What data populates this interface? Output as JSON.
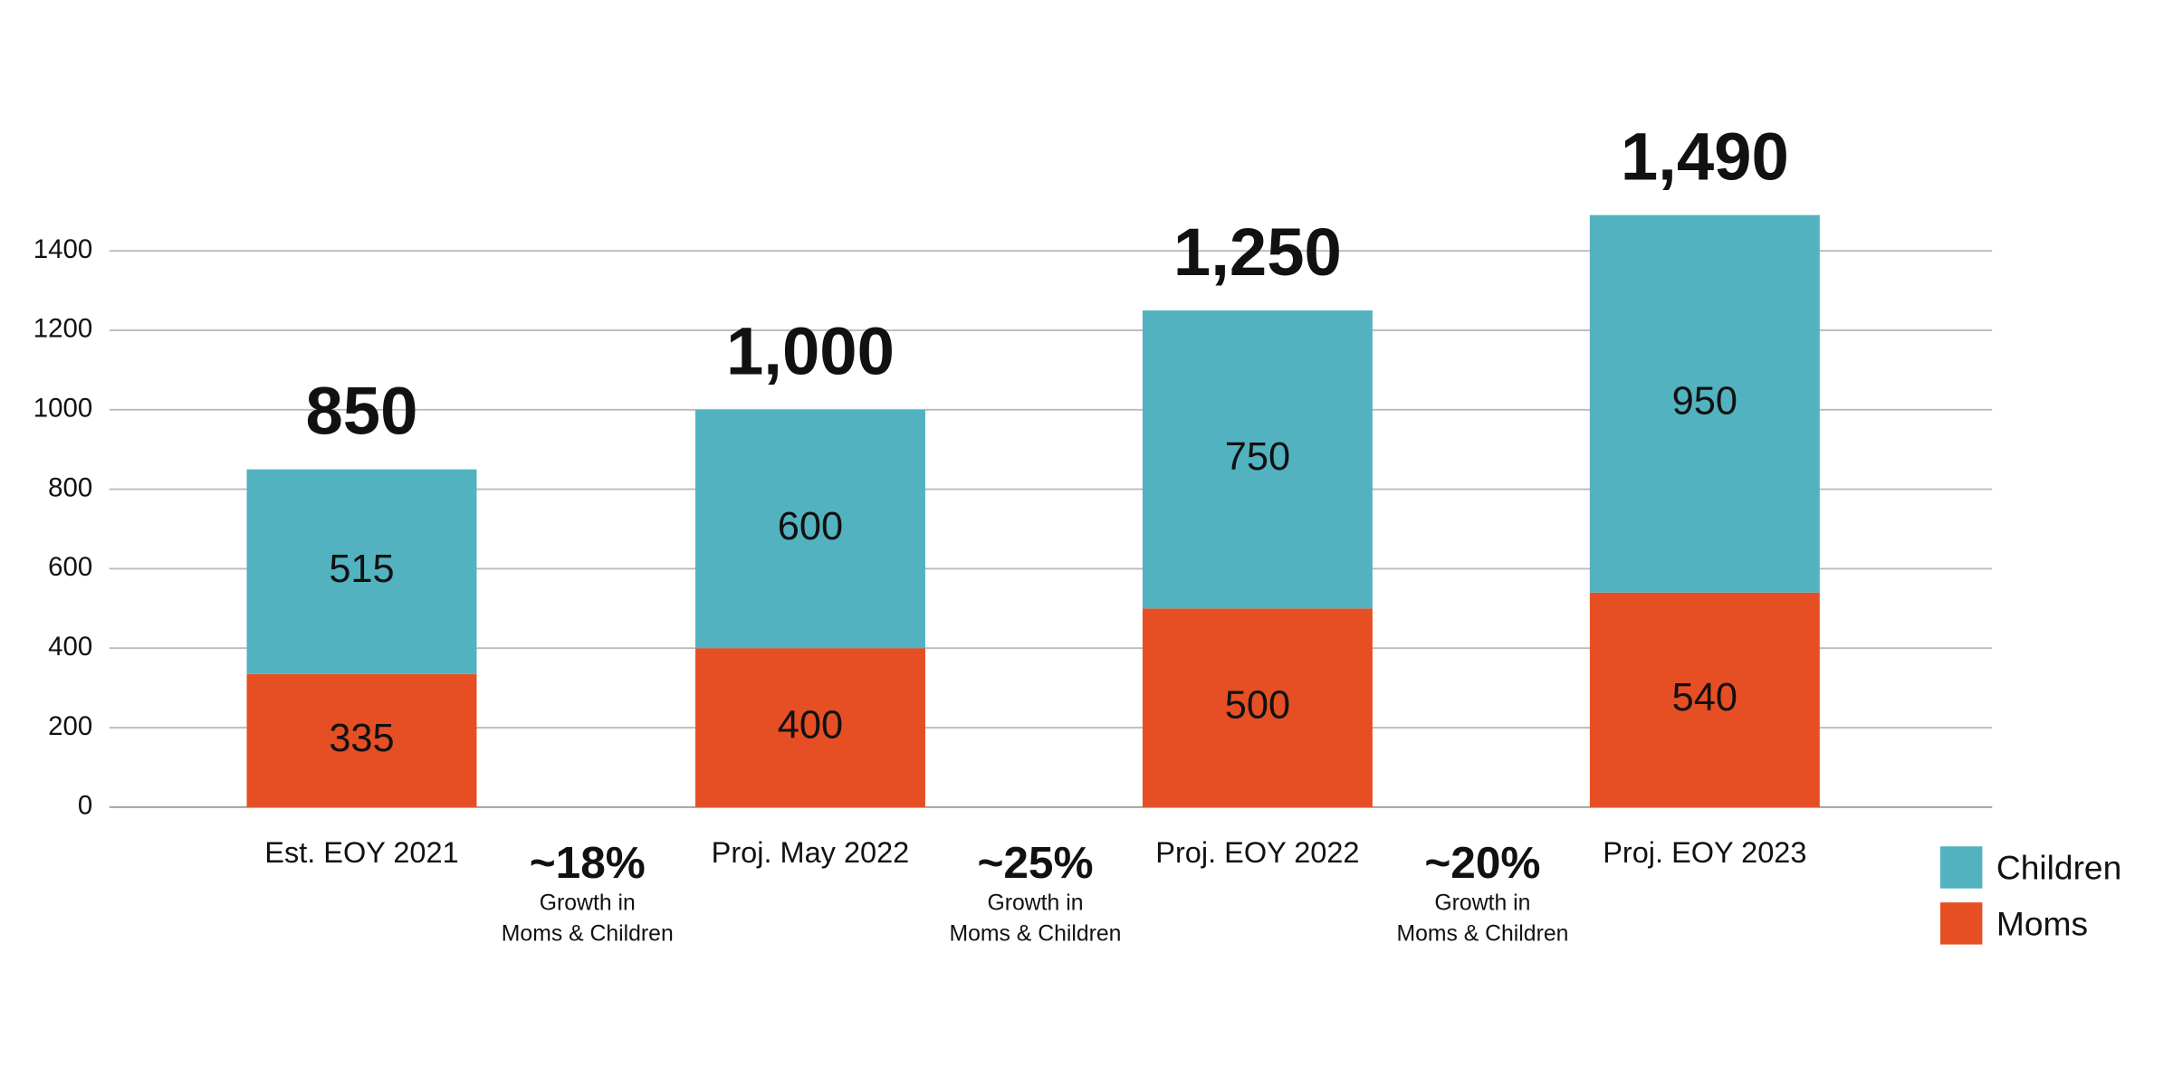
{
  "chart_data": {
    "type": "stacked_bar",
    "categories": [
      "Est. EOY  2021",
      "Proj. May 2022",
      "Proj. EOY 2022",
      "Proj. EOY 2023"
    ],
    "series": [
      {
        "name": "Moms",
        "color": "#e64f24",
        "values": [
          335,
          400,
          500,
          540
        ]
      },
      {
        "name": "Children",
        "color": "#52b2c0",
        "values": [
          515,
          600,
          750,
          950
        ]
      }
    ],
    "totals": [
      850,
      1000,
      1250,
      1490
    ],
    "total_labels": [
      "850",
      "1,000",
      "1,250",
      "1,490"
    ],
    "annotations": [
      {
        "label": "~18%",
        "lines": [
          "Growth in",
          "Moms & Children"
        ]
      },
      {
        "label": "~25%",
        "lines": [
          "Growth in",
          "Moms & Children"
        ]
      },
      {
        "label": "~20%",
        "lines": [
          "Growth in",
          "Moms & Children"
        ]
      }
    ],
    "ylim": [
      0,
      1400
    ],
    "yticks": [
      0,
      200,
      400,
      600,
      800,
      1000,
      1200,
      1400
    ],
    "grid": true,
    "legend": "bottom-right"
  }
}
